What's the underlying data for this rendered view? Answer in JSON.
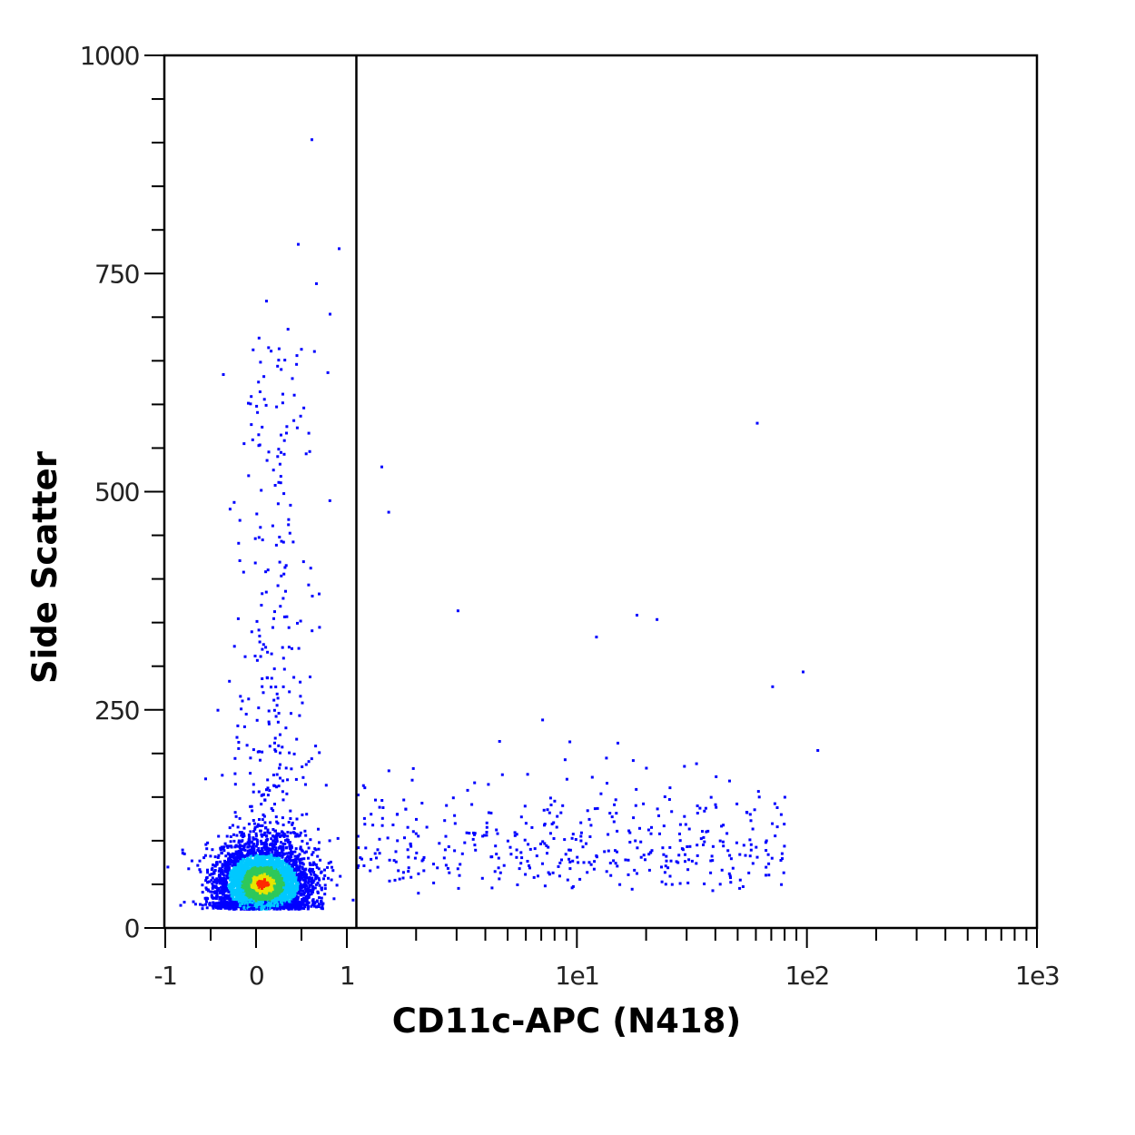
{
  "chart_data": {
    "type": "scatter",
    "title": "",
    "xlabel": "CD11c-APC (N418)",
    "ylabel": "Side Scatter",
    "x_scale": "biexponential",
    "xlim": [
      -1,
      1000
    ],
    "ylim": [
      0,
      1000
    ],
    "x_ticks": [
      {
        "value": -1,
        "label": "-1"
      },
      {
        "value": 0,
        "label": "0"
      },
      {
        "value": 1,
        "label": "1"
      },
      {
        "value": 10,
        "label": "1e1"
      },
      {
        "value": 100,
        "label": "1e2"
      },
      {
        "value": 1000,
        "label": "1e3"
      }
    ],
    "y_ticks": [
      {
        "value": 0,
        "label": "0"
      },
      {
        "value": 250,
        "label": "250"
      },
      {
        "value": 500,
        "label": "500"
      },
      {
        "value": 750,
        "label": "750"
      },
      {
        "value": 1000,
        "label": "1000"
      }
    ],
    "gate": {
      "type": "vertical-line",
      "x": 1.1
    },
    "density_colormap": [
      "#0000ff",
      "#00c8ff",
      "#2ec85a",
      "#e6e600",
      "#ff2a00"
    ],
    "grid": false,
    "legend": "none",
    "populations": [
      {
        "description": "main dense cluster",
        "center": [
          0.05,
          50
        ],
        "count": 4200
      },
      {
        "description": "vertical side-scatter tail near zero",
        "center": [
          0.3,
          300
        ],
        "count": 300
      },
      {
        "description": "CD11c positive cells",
        "x_range": [
          1.1,
          80
        ],
        "y_range": [
          30,
          180
        ],
        "count": 420
      }
    ]
  }
}
